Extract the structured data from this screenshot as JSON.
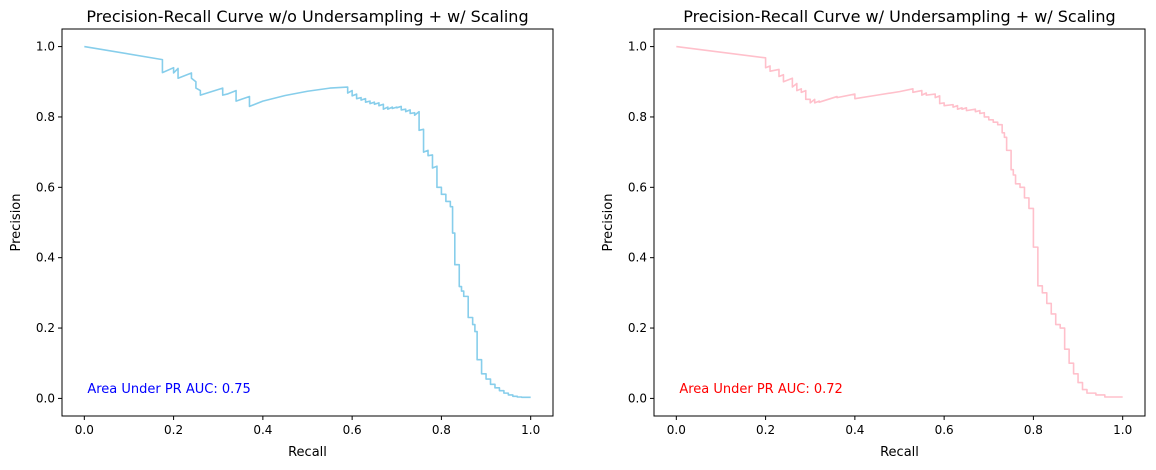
{
  "chart_data": [
    {
      "type": "line",
      "title": "Precision-Recall Curve w/o Undersampling + w/ Scaling",
      "xlabel": "Recall",
      "ylabel": "Precision",
      "xlim": [
        -0.05,
        1.05
      ],
      "ylim": [
        -0.05,
        1.05
      ],
      "xticks": [
        0.0,
        0.2,
        0.4,
        0.6,
        0.8,
        1.0
      ],
      "yticks": [
        0.0,
        0.2,
        0.4,
        0.6,
        0.8,
        1.0
      ],
      "xtick_labels": [
        "0.0",
        "0.2",
        "0.4",
        "0.6",
        "0.8",
        "1.0"
      ],
      "ytick_labels": [
        "0.0",
        "0.2",
        "0.4",
        "0.6",
        "0.8",
        "1.0"
      ],
      "grid": false,
      "line_color": "#87ceeb",
      "annotation": {
        "text": "Area Under PR AUC: 0.75",
        "color": "#0000ff",
        "x": 0.0,
        "y": 0.01
      },
      "series": [
        {
          "x": [
            0.0,
            0.175,
            0.175,
            0.2,
            0.2,
            0.21,
            0.21,
            0.24,
            0.24,
            0.25,
            0.25,
            0.26,
            0.26,
            0.31,
            0.31,
            0.32,
            0.32,
            0.34,
            0.34,
            0.37,
            0.37,
            0.4,
            0.45,
            0.5,
            0.55,
            0.59,
            0.59,
            0.6,
            0.6,
            0.61,
            0.61,
            0.62,
            0.62,
            0.63,
            0.63,
            0.64,
            0.64,
            0.65,
            0.65,
            0.66,
            0.66,
            0.67,
            0.67,
            0.68,
            0.68,
            0.69,
            0.69,
            0.7,
            0.7,
            0.71,
            0.71,
            0.72,
            0.72,
            0.73,
            0.73,
            0.74,
            0.74,
            0.75,
            0.75,
            0.76,
            0.76,
            0.77,
            0.77,
            0.78,
            0.78,
            0.79,
            0.79,
            0.8,
            0.8,
            0.81,
            0.81,
            0.82,
            0.82,
            0.825,
            0.825,
            0.83,
            0.83,
            0.84,
            0.84,
            0.845,
            0.845,
            0.85,
            0.85,
            0.86,
            0.86,
            0.87,
            0.87,
            0.875,
            0.875,
            0.88,
            0.88,
            0.89,
            0.89,
            0.9,
            0.9,
            0.91,
            0.91,
            0.92,
            0.92,
            0.93,
            0.93,
            0.94,
            0.94,
            0.95,
            0.95,
            0.96,
            0.96,
            0.97,
            0.97,
            0.98,
            0.98,
            1.0
          ],
          "y": [
            1.0,
            0.963,
            0.926,
            0.94,
            0.925,
            0.938,
            0.91,
            0.925,
            0.91,
            0.9,
            0.882,
            0.875,
            0.862,
            0.882,
            0.862,
            0.865,
            0.865,
            0.875,
            0.845,
            0.858,
            0.83,
            0.845,
            0.861,
            0.873,
            0.882,
            0.885,
            0.868,
            0.875,
            0.86,
            0.865,
            0.852,
            0.855,
            0.848,
            0.852,
            0.842,
            0.845,
            0.838,
            0.842,
            0.836,
            0.84,
            0.832,
            0.836,
            0.822,
            0.828,
            0.822,
            0.828,
            0.824,
            0.828,
            0.826,
            0.83,
            0.82,
            0.822,
            0.815,
            0.82,
            0.81,
            0.812,
            0.805,
            0.815,
            0.762,
            0.765,
            0.7,
            0.705,
            0.69,
            0.692,
            0.655,
            0.66,
            0.6,
            0.6,
            0.58,
            0.58,
            0.56,
            0.56,
            0.545,
            0.545,
            0.47,
            0.47,
            0.38,
            0.38,
            0.318,
            0.318,
            0.305,
            0.305,
            0.29,
            0.29,
            0.23,
            0.23,
            0.21,
            0.21,
            0.19,
            0.19,
            0.11,
            0.11,
            0.07,
            0.07,
            0.055,
            0.055,
            0.04,
            0.04,
            0.03,
            0.03,
            0.022,
            0.022,
            0.015,
            0.015,
            0.01,
            0.01,
            0.006,
            0.006,
            0.004,
            0.004,
            0.003,
            0.003
          ]
        }
      ]
    },
    {
      "type": "line",
      "title": "Precision-Recall Curve w/ Undersampling + w/ Scaling",
      "xlabel": "Recall",
      "ylabel": "Precision",
      "xlim": [
        -0.05,
        1.05
      ],
      "ylim": [
        -0.05,
        1.05
      ],
      "xticks": [
        0.0,
        0.2,
        0.4,
        0.6,
        0.8,
        1.0
      ],
      "yticks": [
        0.0,
        0.2,
        0.4,
        0.6,
        0.8,
        1.0
      ],
      "xtick_labels": [
        "0.0",
        "0.2",
        "0.4",
        "0.6",
        "0.8",
        "1.0"
      ],
      "ytick_labels": [
        "0.0",
        "0.2",
        "0.4",
        "0.6",
        "0.8",
        "1.0"
      ],
      "grid": false,
      "line_color": "#ffc0cb",
      "annotation": {
        "text": "Area Under PR AUC: 0.72",
        "color": "#ff0000",
        "x": 0.0,
        "y": 0.01
      },
      "series": [
        {
          "x": [
            0.0,
            0.2,
            0.2,
            0.21,
            0.21,
            0.23,
            0.23,
            0.24,
            0.24,
            0.26,
            0.26,
            0.27,
            0.27,
            0.28,
            0.28,
            0.29,
            0.29,
            0.3,
            0.3,
            0.31,
            0.31,
            0.32,
            0.32,
            0.36,
            0.36,
            0.4,
            0.4,
            0.45,
            0.5,
            0.53,
            0.53,
            0.55,
            0.55,
            0.56,
            0.56,
            0.58,
            0.58,
            0.59,
            0.59,
            0.6,
            0.6,
            0.62,
            0.62,
            0.63,
            0.63,
            0.64,
            0.64,
            0.65,
            0.65,
            0.67,
            0.67,
            0.68,
            0.68,
            0.69,
            0.69,
            0.7,
            0.7,
            0.71,
            0.71,
            0.72,
            0.72,
            0.73,
            0.73,
            0.735,
            0.735,
            0.74,
            0.74,
            0.75,
            0.75,
            0.755,
            0.755,
            0.76,
            0.76,
            0.77,
            0.77,
            0.78,
            0.78,
            0.79,
            0.79,
            0.8,
            0.8,
            0.81,
            0.81,
            0.82,
            0.82,
            0.83,
            0.83,
            0.84,
            0.84,
            0.85,
            0.85,
            0.86,
            0.86,
            0.87,
            0.87,
            0.88,
            0.88,
            0.89,
            0.89,
            0.9,
            0.9,
            0.91,
            0.91,
            0.92,
            0.92,
            0.94,
            0.94,
            0.96,
            0.96,
            1.0
          ],
          "y": [
            1.0,
            0.968,
            0.94,
            0.945,
            0.93,
            0.935,
            0.915,
            0.92,
            0.9,
            0.91,
            0.885,
            0.895,
            0.875,
            0.88,
            0.87,
            0.875,
            0.85,
            0.85,
            0.84,
            0.85,
            0.84,
            0.845,
            0.842,
            0.858,
            0.855,
            0.865,
            0.852,
            0.862,
            0.872,
            0.88,
            0.87,
            0.875,
            0.862,
            0.868,
            0.862,
            0.865,
            0.855,
            0.86,
            0.838,
            0.84,
            0.832,
            0.835,
            0.828,
            0.832,
            0.822,
            0.826,
            0.822,
            0.826,
            0.818,
            0.822,
            0.815,
            0.818,
            0.81,
            0.812,
            0.8,
            0.8,
            0.792,
            0.792,
            0.785,
            0.785,
            0.778,
            0.778,
            0.755,
            0.755,
            0.742,
            0.742,
            0.705,
            0.705,
            0.65,
            0.65,
            0.635,
            0.635,
            0.61,
            0.61,
            0.6,
            0.6,
            0.57,
            0.57,
            0.54,
            0.54,
            0.43,
            0.43,
            0.32,
            0.32,
            0.3,
            0.3,
            0.27,
            0.27,
            0.24,
            0.24,
            0.21,
            0.21,
            0.2,
            0.2,
            0.14,
            0.14,
            0.1,
            0.1,
            0.07,
            0.07,
            0.045,
            0.045,
            0.025,
            0.025,
            0.015,
            0.015,
            0.01,
            0.01,
            0.004,
            0.004
          ]
        }
      ]
    }
  ]
}
